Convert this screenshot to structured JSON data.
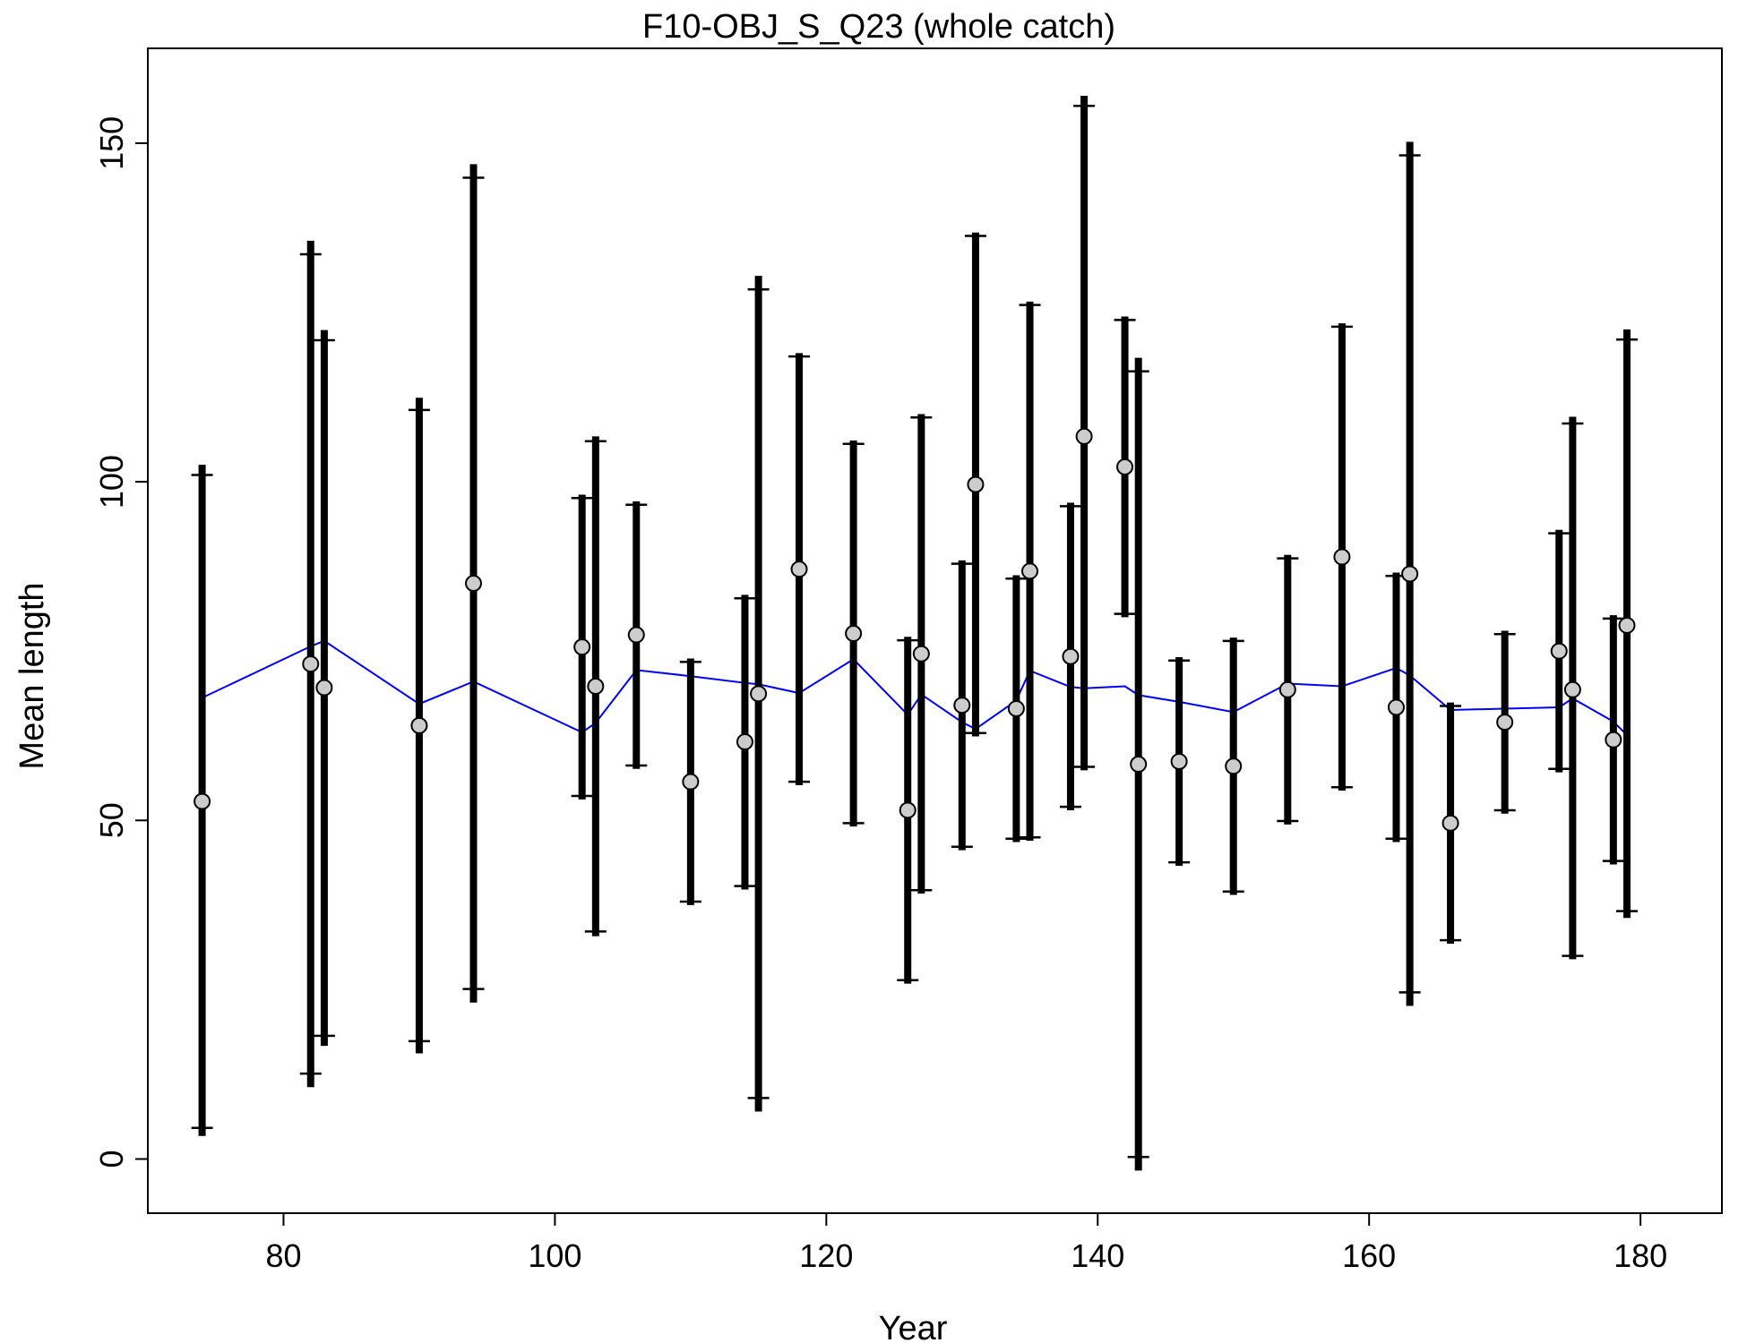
{
  "chart_data": {
    "type": "scatter",
    "title": "F10-OBJ_S_Q23 (whole catch)",
    "xlabel": "Year",
    "ylabel": "Mean length",
    "xlim": [
      70,
      186
    ],
    "ylim": [
      -8,
      164
    ],
    "x_ticks": [
      80,
      100,
      120,
      140,
      160,
      180
    ],
    "y_ticks": [
      0,
      50,
      100,
      150
    ],
    "grid": false,
    "legend": "none",
    "colors": {
      "observed_fill": "#cccccc",
      "observed_edge": "#000000",
      "error_bar": "#000000",
      "expected_line": "#0000ff"
    },
    "series": [
      {
        "type": "points_with_error_bars",
        "points": [
          {
            "x": 74,
            "y": 52.8,
            "lo": 4.6,
            "hi": 101.0,
            "lo_outer": 3.4,
            "hi_outer": 102.5
          },
          {
            "x": 82,
            "y": 73.1,
            "lo": 12.6,
            "hi": 133.6,
            "lo_outer": 10.6,
            "hi_outer": 135.6
          },
          {
            "x": 83,
            "y": 69.6,
            "lo": 18.2,
            "hi": 120.9,
            "lo_outer": 16.7,
            "hi_outer": 122.4
          },
          {
            "x": 90,
            "y": 64.0,
            "lo": 17.4,
            "hi": 110.6,
            "lo_outer": 15.6,
            "hi_outer": 112.4
          },
          {
            "x": 94,
            "y": 85.0,
            "lo": 25.1,
            "hi": 144.9,
            "lo_outer": 23.1,
            "hi_outer": 146.9
          },
          {
            "x": 102,
            "y": 75.6,
            "lo": 53.6,
            "hi": 97.6,
            "lo_outer": 53.1,
            "hi_outer": 98.1
          },
          {
            "x": 103,
            "y": 69.8,
            "lo": 33.6,
            "hi": 106.0,
            "lo_outer": 32.9,
            "hi_outer": 106.7
          },
          {
            "x": 106,
            "y": 77.4,
            "lo": 58.1,
            "hi": 96.6,
            "lo_outer": 57.6,
            "hi_outer": 97.1
          },
          {
            "x": 110,
            "y": 55.7,
            "lo": 38.0,
            "hi": 73.4,
            "lo_outer": 37.5,
            "hi_outer": 73.9
          },
          {
            "x": 114,
            "y": 61.6,
            "lo": 40.3,
            "hi": 82.8,
            "lo_outer": 39.8,
            "hi_outer": 83.3
          },
          {
            "x": 115,
            "y": 68.7,
            "lo": 9.0,
            "hi": 128.4,
            "lo_outer": 7.0,
            "hi_outer": 130.4
          },
          {
            "x": 118,
            "y": 87.1,
            "lo": 55.7,
            "hi": 118.5,
            "lo_outer": 55.2,
            "hi_outer": 119.0
          },
          {
            "x": 122,
            "y": 77.6,
            "lo": 49.6,
            "hi": 105.6,
            "lo_outer": 49.1,
            "hi_outer": 106.1
          },
          {
            "x": 126,
            "y": 51.5,
            "lo": 26.4,
            "hi": 76.6,
            "lo_outer": 25.9,
            "hi_outer": 77.1
          },
          {
            "x": 127,
            "y": 74.6,
            "lo": 39.7,
            "hi": 109.5,
            "lo_outer": 39.2,
            "hi_outer": 110.0
          },
          {
            "x": 130,
            "y": 67.0,
            "lo": 46.1,
            "hi": 87.9,
            "lo_outer": 45.6,
            "hi_outer": 88.4
          },
          {
            "x": 131,
            "y": 99.6,
            "lo": 62.9,
            "hi": 136.3,
            "lo_outer": 62.4,
            "hi_outer": 136.8
          },
          {
            "x": 134,
            "y": 66.5,
            "lo": 47.3,
            "hi": 85.7,
            "lo_outer": 46.8,
            "hi_outer": 86.2
          },
          {
            "x": 135,
            "y": 86.8,
            "lo": 47.5,
            "hi": 126.1,
            "lo_outer": 47.0,
            "hi_outer": 126.6
          },
          {
            "x": 138,
            "y": 74.2,
            "lo": 52.0,
            "hi": 96.4,
            "lo_outer": 51.5,
            "hi_outer": 96.9
          },
          {
            "x": 139,
            "y": 106.7,
            "lo": 57.9,
            "hi": 155.5,
            "lo_outer": 57.4,
            "hi_outer": 157.0
          },
          {
            "x": 142,
            "y": 102.2,
            "lo": 80.5,
            "hi": 123.9,
            "lo_outer": 80.0,
            "hi_outer": 124.4
          },
          {
            "x": 143,
            "y": 58.3,
            "lo": 0.3,
            "hi": 116.3,
            "lo_outer": -1.7,
            "hi_outer": 118.3
          },
          {
            "x": 146,
            "y": 58.7,
            "lo": 43.8,
            "hi": 73.6,
            "lo_outer": 43.3,
            "hi_outer": 74.1
          },
          {
            "x": 150,
            "y": 58.0,
            "lo": 39.5,
            "hi": 76.5,
            "lo_outer": 39.0,
            "hi_outer": 77.0
          },
          {
            "x": 154,
            "y": 69.3,
            "lo": 49.9,
            "hi": 88.7,
            "lo_outer": 49.4,
            "hi_outer": 89.2
          },
          {
            "x": 158,
            "y": 88.9,
            "lo": 54.9,
            "hi": 122.9,
            "lo_outer": 54.4,
            "hi_outer": 123.4
          },
          {
            "x": 162,
            "y": 66.7,
            "lo": 47.3,
            "hi": 86.1,
            "lo_outer": 46.8,
            "hi_outer": 86.6
          },
          {
            "x": 163,
            "y": 86.4,
            "lo": 24.6,
            "hi": 148.2,
            "lo_outer": 22.6,
            "hi_outer": 150.2
          },
          {
            "x": 166,
            "y": 49.6,
            "lo": 32.3,
            "hi": 66.9,
            "lo_outer": 31.8,
            "hi_outer": 67.4
          },
          {
            "x": 170,
            "y": 64.5,
            "lo": 51.5,
            "hi": 77.5,
            "lo_outer": 51.0,
            "hi_outer": 78.0
          },
          {
            "x": 174,
            "y": 75.0,
            "lo": 57.6,
            "hi": 92.4,
            "lo_outer": 57.1,
            "hi_outer": 92.9
          },
          {
            "x": 175,
            "y": 69.3,
            "lo": 30.0,
            "hi": 108.6,
            "lo_outer": 29.5,
            "hi_outer": 109.6
          },
          {
            "x": 178,
            "y": 61.9,
            "lo": 44.0,
            "hi": 79.8,
            "lo_outer": 43.5,
            "hi_outer": 80.3
          },
          {
            "x": 179,
            "y": 78.8,
            "lo": 36.6,
            "hi": 121.0,
            "lo_outer": 35.6,
            "hi_outer": 122.5
          }
        ]
      },
      {
        "type": "line",
        "x": [
          74,
          82,
          83,
          90,
          94,
          102,
          103,
          106,
          110,
          114,
          115,
          118,
          122,
          126,
          127,
          130,
          131,
          134,
          135,
          138,
          139,
          142,
          143,
          146,
          150,
          154,
          158,
          162,
          163,
          166,
          170,
          174,
          175,
          178,
          179
        ],
        "y": [
          68.1,
          75.7,
          76.5,
          67.2,
          70.5,
          63.0,
          64.4,
          72.2,
          71.3,
          70.3,
          70.1,
          68.8,
          73.8,
          65.6,
          68.6,
          64.5,
          63.5,
          67.7,
          72.1,
          69.7,
          69.5,
          69.8,
          68.5,
          67.5,
          66.0,
          70.2,
          69.8,
          72.5,
          71.4,
          66.3,
          66.5,
          66.7,
          68.0,
          64.6,
          62.6
        ]
      }
    ]
  }
}
